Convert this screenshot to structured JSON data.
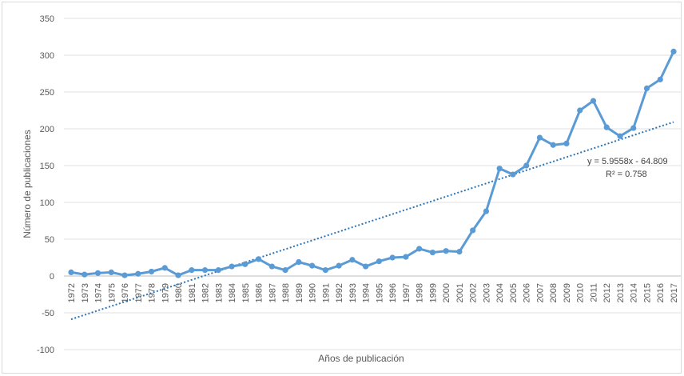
{
  "chart_data": {
    "type": "line",
    "title": "",
    "xlabel": "Años de publicación",
    "ylabel": "Número de publicaciones",
    "ylim": [
      -100,
      350
    ],
    "yticks": [
      -100,
      -50,
      0,
      50,
      100,
      150,
      200,
      250,
      300,
      350
    ],
    "grid": true,
    "categories": [
      "1972",
      "1973",
      "1974",
      "1975",
      "1976",
      "1977",
      "1978",
      "1979",
      "1980",
      "1981",
      "1982",
      "1983",
      "1984",
      "1985",
      "1986",
      "1987",
      "1988",
      "1989",
      "1990",
      "1991",
      "1992",
      "1993",
      "1994",
      "1995",
      "1996",
      "1997",
      "1998",
      "1999",
      "2000",
      "2001",
      "2002",
      "2003",
      "2004",
      "2005",
      "2006",
      "2007",
      "2008",
      "2009",
      "2010",
      "2011",
      "2012",
      "2013",
      "2014",
      "2015",
      "2016",
      "2017"
    ],
    "series": [
      {
        "name": "",
        "color": "#5b9bd5",
        "values": [
          5,
          2,
          4,
          5,
          1,
          3,
          6,
          11,
          1,
          8,
          8,
          8,
          13,
          16,
          23,
          13,
          8,
          19,
          14,
          8,
          14,
          22,
          13,
          20,
          25,
          26,
          37,
          32,
          34,
          33,
          62,
          88,
          146,
          138,
          150,
          188,
          178,
          180,
          225,
          238,
          202,
          190,
          201,
          255,
          267,
          305
        ]
      }
    ],
    "trendline": {
      "type": "linear",
      "equation": "y = 5.9558x - 64.809",
      "r2": "R² = 0.758",
      "slope": 5.9558,
      "intercept": -64.809,
      "color": "#2e75b6"
    }
  }
}
